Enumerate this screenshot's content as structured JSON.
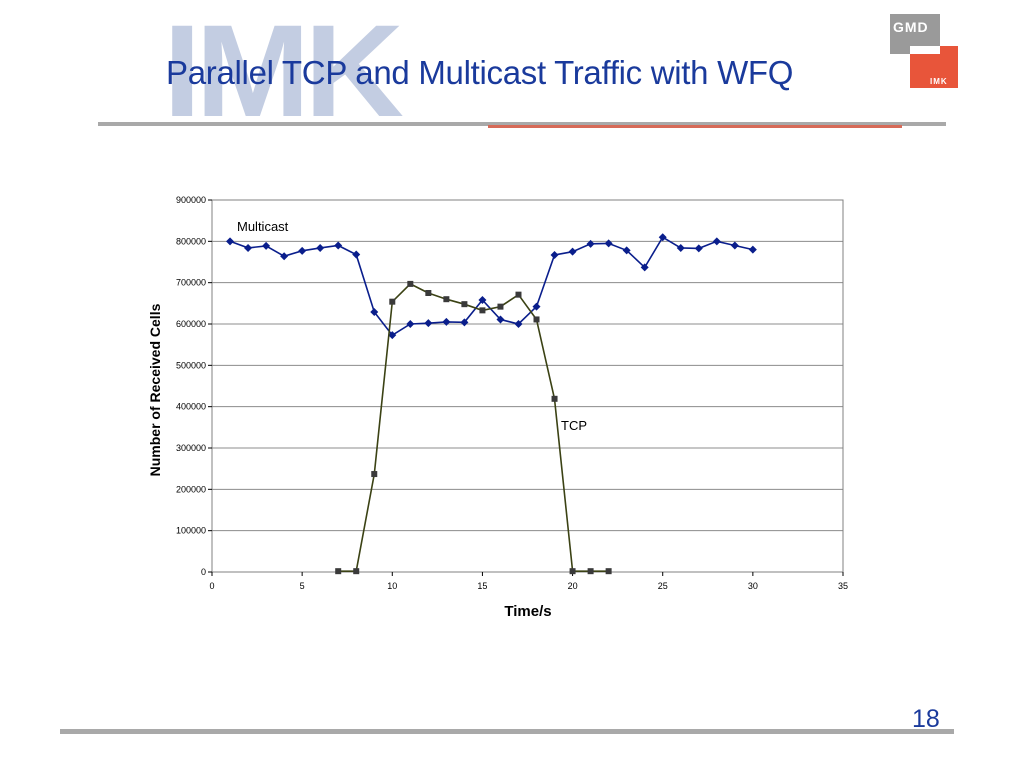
{
  "header": {
    "watermark": "IMK",
    "title": "Parallel TCP and Multicast Traffic with WFQ"
  },
  "logo": {
    "top_text": "GMD",
    "bottom_text": "IMK",
    "colors": [
      "#9a9a9a",
      "#e8553a"
    ]
  },
  "footer": {
    "page_number": "18"
  },
  "chart_data": {
    "type": "line",
    "title": "",
    "xlabel": "Time/s",
    "ylabel": "Number of Received Cells",
    "xlim": [
      0,
      35
    ],
    "ylim": [
      0,
      900000
    ],
    "x_ticks": [
      "0",
      "5",
      "10",
      "15",
      "20",
      "25",
      "30",
      "35"
    ],
    "y_ticks": [
      "0",
      "100000",
      "200000",
      "300000",
      "400000",
      "500000",
      "600000",
      "700000",
      "800000",
      "900000"
    ],
    "grid": "horizontal",
    "series": [
      {
        "name": "Multicast",
        "color": "#0a1e8c",
        "marker": "diamond",
        "points": [
          [
            1,
            800000
          ],
          [
            2,
            784000
          ],
          [
            3,
            789000
          ],
          [
            4,
            764000
          ],
          [
            5,
            777000
          ],
          [
            6,
            784000
          ],
          [
            7,
            790000
          ],
          [
            8,
            768000
          ],
          [
            9,
            629000
          ],
          [
            10,
            573000
          ],
          [
            11,
            600000
          ],
          [
            12,
            602000
          ],
          [
            13,
            605000
          ],
          [
            14,
            604000
          ],
          [
            15,
            658000
          ],
          [
            16,
            611000
          ],
          [
            17,
            600000
          ],
          [
            18,
            642000
          ],
          [
            19,
            767000
          ],
          [
            20,
            775000
          ],
          [
            21,
            794000
          ],
          [
            22,
            795000
          ],
          [
            23,
            778000
          ],
          [
            24,
            737000
          ],
          [
            25,
            810000
          ],
          [
            26,
            784000
          ],
          [
            27,
            783000
          ],
          [
            28,
            800000
          ],
          [
            29,
            790000
          ],
          [
            30,
            780000
          ]
        ]
      },
      {
        "name": "TCP",
        "color": "#3b4214",
        "marker": "square",
        "points": [
          [
            7,
            2000
          ],
          [
            8,
            2000
          ],
          [
            9,
            237000
          ],
          [
            10,
            654000
          ],
          [
            11,
            697000
          ],
          [
            12,
            675000
          ],
          [
            13,
            660000
          ],
          [
            14,
            648000
          ],
          [
            15,
            633000
          ],
          [
            16,
            642000
          ],
          [
            17,
            671000
          ],
          [
            18,
            611000
          ],
          [
            19,
            419000
          ],
          [
            20,
            2000
          ],
          [
            21,
            2000
          ],
          [
            22,
            2000
          ]
        ]
      }
    ]
  }
}
